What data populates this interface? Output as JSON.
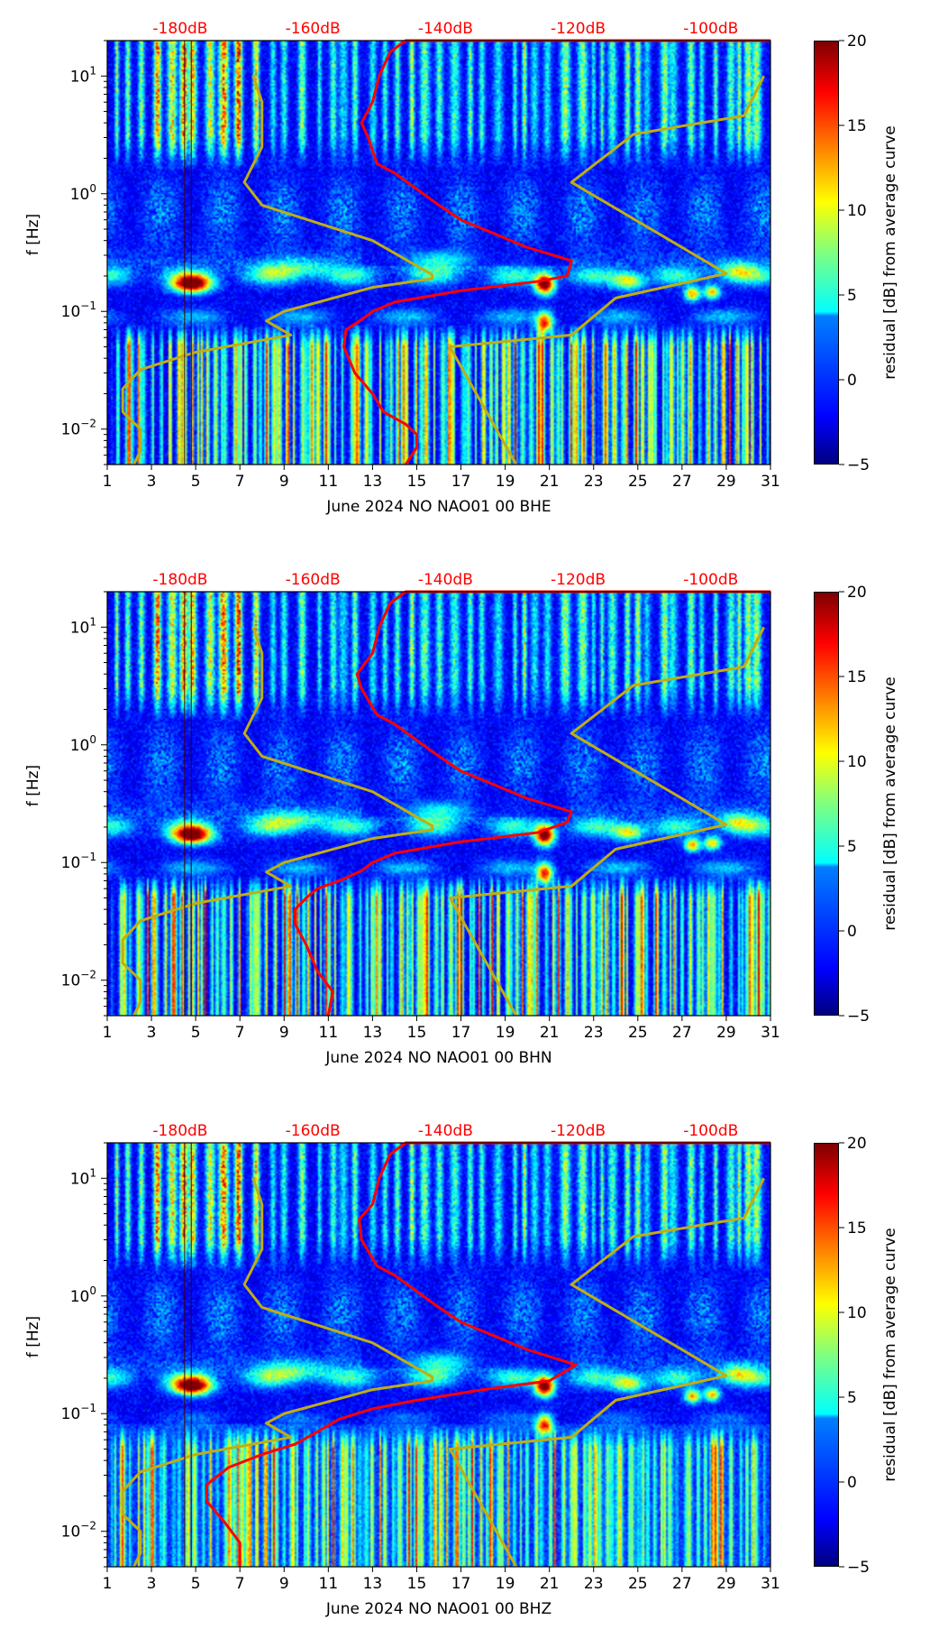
{
  "chart_data": [
    {
      "type": "heatmap",
      "xlabel": "June 2024 NO NAO01 00 BHE",
      "ylabel": "f [Hz]",
      "colorbar_label": "residual [dB] from average curve",
      "component": "BHE"
    },
    {
      "type": "heatmap",
      "xlabel": "June 2024 NO NAO01 00 BHN",
      "ylabel": "f [Hz]",
      "colorbar_label": "residual [dB] from average curve",
      "component": "BHN"
    },
    {
      "type": "heatmap",
      "xlabel": "June 2024 NO NAO01 00 BHZ",
      "ylabel": "f [Hz]",
      "colorbar_label": "residual [dB] from average curve",
      "component": "BHZ"
    }
  ],
  "shared": {
    "xlim": [
      1,
      31
    ],
    "ylim_hz": [
      0.005,
      20
    ],
    "yscale": "log",
    "xticks": [
      "1",
      "3",
      "5",
      "7",
      "9",
      "11",
      "13",
      "15",
      "17",
      "19",
      "21",
      "23",
      "25",
      "27",
      "29",
      "31"
    ],
    "yticks": [
      {
        "v": 10,
        "label": "10",
        "exp": "1"
      },
      {
        "v": 1,
        "label": "10",
        "exp": "0"
      },
      {
        "v": 0.1,
        "label": "10",
        "exp": "−1"
      },
      {
        "v": 0.01,
        "label": "10",
        "exp": "−2"
      }
    ],
    "top_ticks": [
      {
        "db": -180,
        "label": "-180dB"
      },
      {
        "db": -160,
        "label": "-160dB"
      },
      {
        "db": -140,
        "label": "-140dB"
      },
      {
        "db": -120,
        "label": "-120dB"
      },
      {
        "db": -100,
        "label": "-100dB"
      }
    ],
    "db_to_day": {
      "day_at_minus180": 4.3,
      "days_per_db": 0.3
    },
    "clim": [
      -5,
      20
    ],
    "cbar_ticks": [
      "20",
      "15",
      "10",
      "5",
      "0",
      "−5"
    ],
    "colors": {
      "average_curve": "#ff0000",
      "noise_model": "#bfae14",
      "top_labels": "#ff0000"
    },
    "noise_model_lines": [
      {
        "name": "NLNM",
        "points_day_hz": [
          [
            2.2,
            0.005
          ],
          [
            2.5,
            0.0065
          ],
          [
            2.5,
            0.01
          ],
          [
            1.7,
            0.014
          ],
          [
            1.7,
            0.022
          ],
          [
            2.5,
            0.032
          ],
          [
            5,
            0.045
          ],
          [
            9.3,
            0.063
          ],
          [
            8.2,
            0.083
          ],
          [
            9,
            0.1
          ],
          [
            13,
            0.16
          ],
          [
            15.7,
            0.19
          ],
          [
            15.7,
            0.205
          ],
          [
            13,
            0.4
          ],
          [
            8,
            0.8
          ],
          [
            7.2,
            1.25
          ],
          [
            8,
            2.5
          ],
          [
            8,
            6
          ],
          [
            7.6,
            10
          ]
        ]
      },
      {
        "name": "NHNM",
        "points_day_hz": [
          [
            19.5,
            0.005
          ],
          [
            16.5,
            0.05
          ],
          [
            22,
            0.063
          ],
          [
            24,
            0.13
          ],
          [
            29,
            0.21
          ],
          [
            22,
            1.25
          ],
          [
            24.8,
            3.2
          ],
          [
            29.8,
            4.6
          ],
          [
            30.7,
            10
          ]
        ]
      }
    ],
    "average_curves": [
      [
        [
          14.5,
          0.005
        ],
        [
          15,
          0.007
        ],
        [
          15,
          0.009
        ],
        [
          14.5,
          0.011
        ],
        [
          13.5,
          0.014
        ],
        [
          13,
          0.02
        ],
        [
          12.2,
          0.03
        ],
        [
          11.7,
          0.05
        ],
        [
          11.8,
          0.07
        ],
        [
          12.5,
          0.085
        ],
        [
          13,
          0.1
        ],
        [
          14,
          0.12
        ],
        [
          17,
          0.15
        ],
        [
          20.5,
          0.18
        ],
        [
          21.8,
          0.2
        ],
        [
          22,
          0.27
        ],
        [
          20,
          0.35
        ],
        [
          17,
          0.6
        ],
        [
          16,
          0.8
        ],
        [
          14,
          1.5
        ],
        [
          13.2,
          1.8
        ],
        [
          12.8,
          3
        ],
        [
          12.5,
          4
        ],
        [
          13,
          6
        ],
        [
          13.3,
          10
        ],
        [
          13.8,
          16
        ],
        [
          14.5,
          20
        ],
        [
          31,
          20
        ]
      ],
      [
        [
          11,
          0.005
        ],
        [
          11.2,
          0.008
        ],
        [
          10.5,
          0.012
        ],
        [
          10,
          0.02
        ],
        [
          9.5,
          0.03
        ],
        [
          9.5,
          0.04
        ],
        [
          10,
          0.05
        ],
        [
          10.5,
          0.06
        ],
        [
          11.5,
          0.07
        ],
        [
          12.5,
          0.085
        ],
        [
          13,
          0.1
        ],
        [
          14,
          0.12
        ],
        [
          17,
          0.15
        ],
        [
          20.5,
          0.18
        ],
        [
          21.8,
          0.22
        ],
        [
          22,
          0.27
        ],
        [
          20,
          0.35
        ],
        [
          17,
          0.6
        ],
        [
          16,
          0.8
        ],
        [
          14,
          1.5
        ],
        [
          13.2,
          1.8
        ],
        [
          12.5,
          3
        ],
        [
          12.3,
          4
        ],
        [
          13,
          6
        ],
        [
          13.3,
          10
        ],
        [
          13.8,
          16
        ],
        [
          14.5,
          20
        ],
        [
          31,
          20
        ]
      ],
      [
        [
          7,
          0.005
        ],
        [
          7,
          0.008
        ],
        [
          6.3,
          0.012
        ],
        [
          5.5,
          0.018
        ],
        [
          5.5,
          0.025
        ],
        [
          6.5,
          0.035
        ],
        [
          8,
          0.045
        ],
        [
          9.5,
          0.055
        ],
        [
          10.5,
          0.07
        ],
        [
          11.5,
          0.09
        ],
        [
          13,
          0.11
        ],
        [
          15,
          0.13
        ],
        [
          18,
          0.16
        ],
        [
          21,
          0.19
        ],
        [
          22.2,
          0.26
        ],
        [
          20,
          0.35
        ],
        [
          17,
          0.6
        ],
        [
          16,
          0.8
        ],
        [
          14,
          1.5
        ],
        [
          13.2,
          1.8
        ],
        [
          12.5,
          3
        ],
        [
          12.4,
          4.5
        ],
        [
          13,
          6
        ],
        [
          13.3,
          10
        ],
        [
          13.8,
          16
        ],
        [
          14.5,
          20
        ],
        [
          31,
          20
        ]
      ]
    ]
  }
}
